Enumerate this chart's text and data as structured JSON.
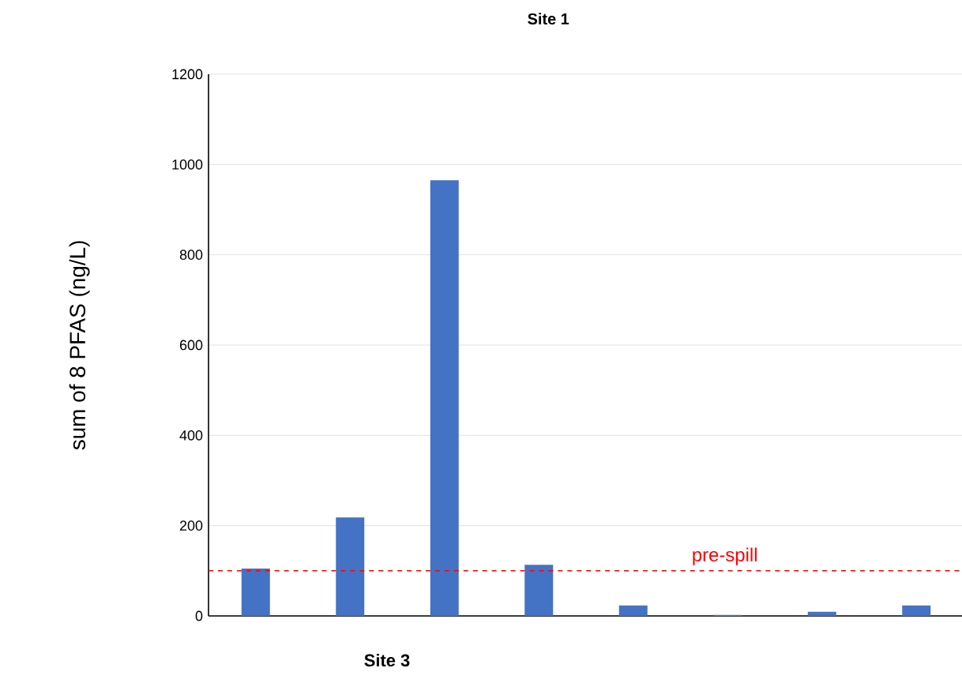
{
  "chart_data": {
    "type": "bar",
    "title": "Site 1",
    "ylabel": "sum of 8 PFAS (ng/L)",
    "categories": [
      null,
      null,
      null,
      null,
      null,
      null,
      null,
      null
    ],
    "values": [
      105,
      218,
      965,
      113,
      23,
      2,
      9,
      23
    ],
    "color": "#4472c4",
    "ylim": [
      0,
      1200
    ],
    "yticks": [
      0,
      200,
      400,
      600,
      800,
      1000,
      1200
    ],
    "grid": "y",
    "tick_labels": "y",
    "ref_lines": [
      {
        "axis": "y",
        "value": 100,
        "label": "pre-spill",
        "color": "#ff0000",
        "line_style": "dashed"
      }
    ],
    "annotations": [
      "Site 3"
    ]
  }
}
